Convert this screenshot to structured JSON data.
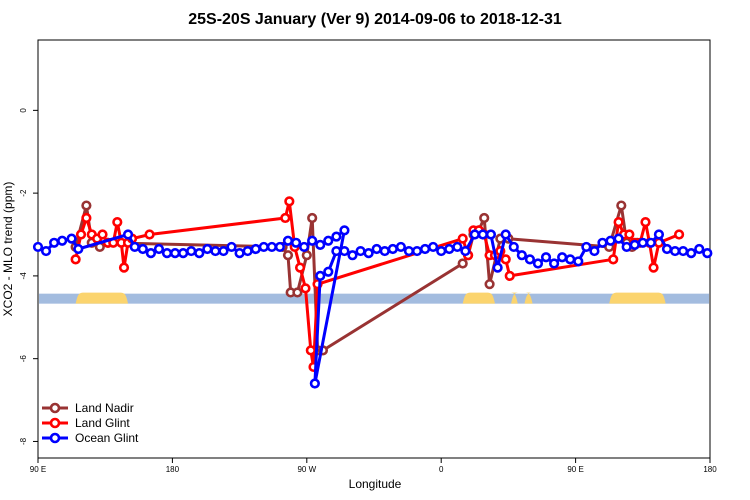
{
  "chart_data": {
    "type": "line",
    "title": "25S-20S January (Ver 9)   2014-09-06 to 2018-12-31",
    "xlabel": "Longitude",
    "ylabel": "XCO2 - MLO trend (ppm)",
    "xlim": [
      0,
      500
    ],
    "ylim": [
      -8.4,
      1.7
    ],
    "x_ticks": [
      {
        "x": 0,
        "label": "90 E"
      },
      {
        "x": 100,
        "label": "180"
      },
      {
        "x": 200,
        "label": "90 W"
      },
      {
        "x": 300,
        "label": "0"
      },
      {
        "x": 400,
        "label": "90 E"
      },
      {
        "x": 500,
        "label": "180"
      }
    ],
    "y_ticks": [
      {
        "y": 0,
        "label": "0"
      },
      {
        "y": -2,
        "label": "-2"
      },
      {
        "y": -4,
        "label": "-4"
      },
      {
        "y": -6,
        "label": "-6"
      },
      {
        "y": -8,
        "label": "-8"
      }
    ],
    "land_band": {
      "y_center": -4.55,
      "ocean_color": "#a3bcdf",
      "land_color": "#fbd46e",
      "land_segments": [
        [
          28,
          67
        ],
        [
          316,
          340
        ],
        [
          352,
          357
        ],
        [
          362,
          368
        ],
        [
          425,
          467
        ]
      ]
    },
    "series": [
      {
        "name": "Land Nadir",
        "color": "#993333",
        "points": [
          [
            28,
            -3.3
          ],
          [
            36,
            -2.3
          ],
          [
            40,
            -3.2
          ],
          [
            46,
            -3.3
          ],
          [
            52,
            -3.2
          ],
          [
            182,
            -3.3
          ],
          [
            186,
            -3.5
          ],
          [
            188,
            -4.4
          ],
          [
            193,
            -4.4
          ],
          [
            200,
            -3.5
          ],
          [
            204,
            -2.6
          ],
          [
            208,
            -5.8
          ],
          [
            212,
            -5.8
          ],
          [
            316,
            -3.7
          ],
          [
            320,
            -3.5
          ],
          [
            324,
            -3.0
          ],
          [
            328,
            -2.9
          ],
          [
            332,
            -2.6
          ],
          [
            336,
            -4.2
          ],
          [
            344,
            -3.1
          ],
          [
            350,
            -3.1
          ],
          [
            425,
            -3.3
          ],
          [
            434,
            -2.3
          ],
          [
            438,
            -3.2
          ],
          [
            442,
            -3.3
          ],
          [
            446,
            -3.2
          ]
        ]
      },
      {
        "name": "Land Glint",
        "color": "#ff0000",
        "points": [
          [
            28,
            -3.6
          ],
          [
            32,
            -3.0
          ],
          [
            36,
            -2.6
          ],
          [
            40,
            -3.0
          ],
          [
            44,
            -3.1
          ],
          [
            48,
            -3.0
          ],
          [
            52,
            -3.2
          ],
          [
            56,
            -3.2
          ],
          [
            59,
            -2.7
          ],
          [
            62,
            -3.2
          ],
          [
            64,
            -3.8
          ],
          [
            67,
            -3.2
          ],
          [
            70,
            -3.1
          ],
          [
            83,
            -3.0
          ],
          [
            184,
            -2.6
          ],
          [
            187,
            -2.2
          ],
          [
            191,
            -3.3
          ],
          [
            195,
            -3.8
          ],
          [
            199,
            -4.3
          ],
          [
            203,
            -5.8
          ],
          [
            205,
            -6.2
          ],
          [
            208,
            -4.2
          ],
          [
            316,
            -3.1
          ],
          [
            320,
            -3.5
          ],
          [
            324,
            -2.9
          ],
          [
            328,
            -2.9
          ],
          [
            332,
            -3.0
          ],
          [
            336,
            -3.5
          ],
          [
            340,
            -3.5
          ],
          [
            344,
            -3.4
          ],
          [
            348,
            -3.6
          ],
          [
            351,
            -4.0
          ],
          [
            428,
            -3.6
          ],
          [
            432,
            -2.7
          ],
          [
            436,
            -3.0
          ],
          [
            440,
            -3.0
          ],
          [
            444,
            -3.2
          ],
          [
            448,
            -3.2
          ],
          [
            452,
            -2.7
          ],
          [
            455,
            -3.2
          ],
          [
            458,
            -3.8
          ],
          [
            462,
            -3.2
          ],
          [
            477,
            -3.0
          ]
        ]
      },
      {
        "name": "Ocean Glint",
        "color": "#0000ff",
        "points": [
          [
            0,
            -3.3
          ],
          [
            6,
            -3.4
          ],
          [
            12,
            -3.2
          ],
          [
            18,
            -3.15
          ],
          [
            25,
            -3.1
          ],
          [
            30,
            -3.35
          ],
          [
            67,
            -3.0
          ],
          [
            72,
            -3.3
          ],
          [
            78,
            -3.35
          ],
          [
            84,
            -3.45
          ],
          [
            90,
            -3.35
          ],
          [
            96,
            -3.45
          ],
          [
            102,
            -3.45
          ],
          [
            108,
            -3.45
          ],
          [
            114,
            -3.4
          ],
          [
            120,
            -3.45
          ],
          [
            126,
            -3.35
          ],
          [
            132,
            -3.4
          ],
          [
            138,
            -3.4
          ],
          [
            144,
            -3.3
          ],
          [
            150,
            -3.45
          ],
          [
            156,
            -3.4
          ],
          [
            162,
            -3.35
          ],
          [
            168,
            -3.3
          ],
          [
            174,
            -3.3
          ],
          [
            180,
            -3.3
          ],
          [
            186,
            -3.15
          ],
          [
            192,
            -3.2
          ],
          [
            198,
            -3.3
          ],
          [
            204,
            -3.15
          ],
          [
            210,
            -3.25
          ],
          [
            216,
            -3.15
          ],
          [
            222,
            -3.05
          ],
          [
            228,
            -2.9
          ],
          [
            206,
            -6.6
          ],
          [
            210,
            -4.0
          ],
          [
            216,
            -3.9
          ],
          [
            222,
            -3.4
          ],
          [
            228,
            -3.4
          ],
          [
            234,
            -3.5
          ],
          [
            240,
            -3.4
          ],
          [
            246,
            -3.45
          ],
          [
            252,
            -3.35
          ],
          [
            258,
            -3.4
          ],
          [
            264,
            -3.35
          ],
          [
            270,
            -3.3
          ],
          [
            276,
            -3.4
          ],
          [
            282,
            -3.4
          ],
          [
            288,
            -3.35
          ],
          [
            294,
            -3.3
          ],
          [
            300,
            -3.4
          ],
          [
            306,
            -3.35
          ],
          [
            312,
            -3.3
          ],
          [
            318,
            -3.4
          ],
          [
            325,
            -3.0
          ],
          [
            331,
            -3.0
          ],
          [
            337,
            -3.0
          ],
          [
            342,
            -3.8
          ],
          [
            348,
            -3.0
          ],
          [
            354,
            -3.3
          ],
          [
            360,
            -3.5
          ],
          [
            366,
            -3.6
          ],
          [
            372,
            -3.7
          ],
          [
            378,
            -3.55
          ],
          [
            384,
            -3.7
          ],
          [
            390,
            -3.55
          ],
          [
            396,
            -3.6
          ],
          [
            402,
            -3.65
          ],
          [
            408,
            -3.3
          ],
          [
            414,
            -3.4
          ],
          [
            420,
            -3.2
          ],
          [
            426,
            -3.15
          ],
          [
            432,
            -3.1
          ],
          [
            438,
            -3.3
          ],
          [
            444,
            -3.25
          ],
          [
            450,
            -3.2
          ],
          [
            456,
            -3.2
          ],
          [
            462,
            -3.0
          ],
          [
            468,
            -3.35
          ],
          [
            474,
            -3.4
          ],
          [
            480,
            -3.4
          ],
          [
            486,
            -3.45
          ],
          [
            492,
            -3.35
          ],
          [
            498,
            -3.45
          ]
        ]
      }
    ],
    "legend": {
      "position": "bottom-left",
      "entries": [
        "Land Nadir",
        "Land Glint",
        "Ocean Glint"
      ]
    }
  }
}
